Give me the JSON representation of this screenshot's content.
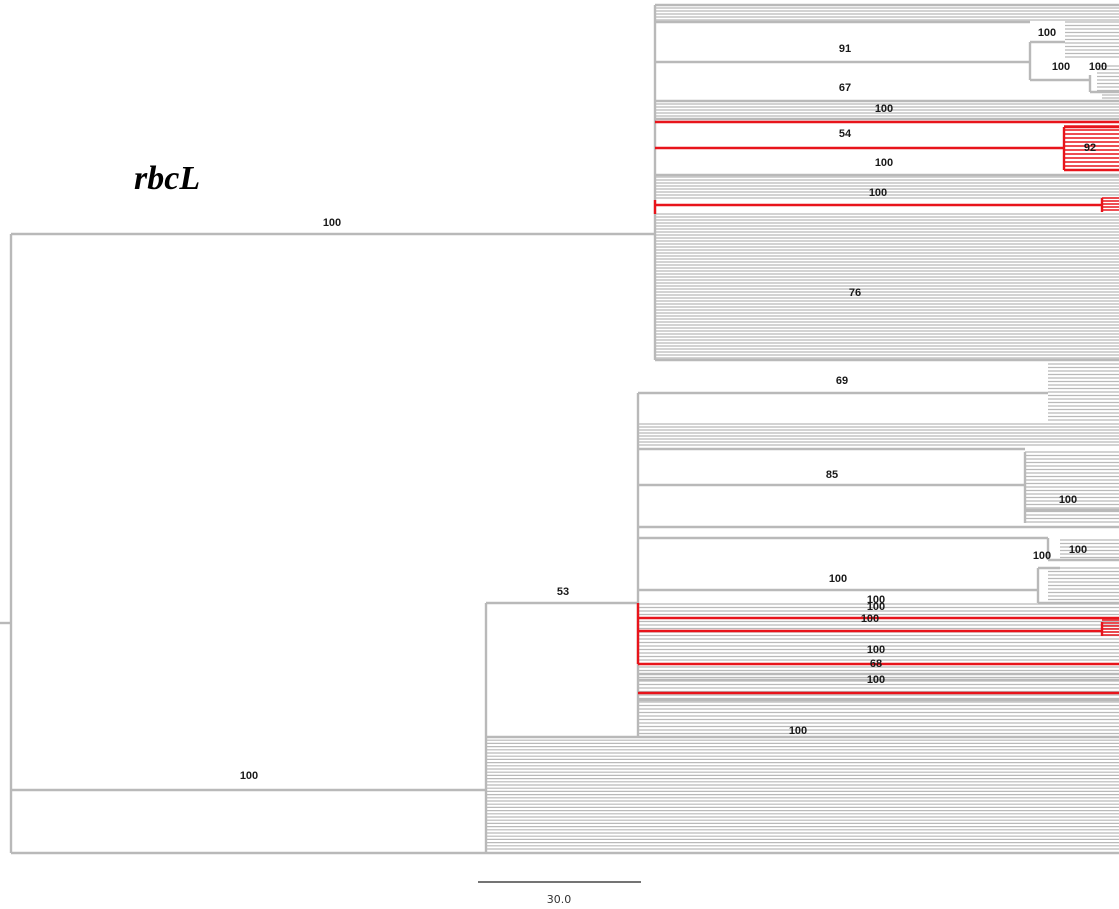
{
  "title": "rbcL",
  "colors": {
    "branch": "#b9b9b9",
    "highlight": "#e8141b",
    "label": "#1a1a1a"
  },
  "scale_bar": {
    "label": "30.0",
    "length": 30.0
  },
  "bootstrap_labels": [
    "100",
    "91",
    "100",
    "100",
    "67",
    "100",
    "54",
    "92",
    "100",
    "100",
    "100",
    "76",
    "69",
    "85",
    "100",
    "100",
    "100",
    "100",
    "53",
    "100",
    "100",
    "100",
    "100",
    "68",
    "100",
    "100",
    "100"
  ]
}
